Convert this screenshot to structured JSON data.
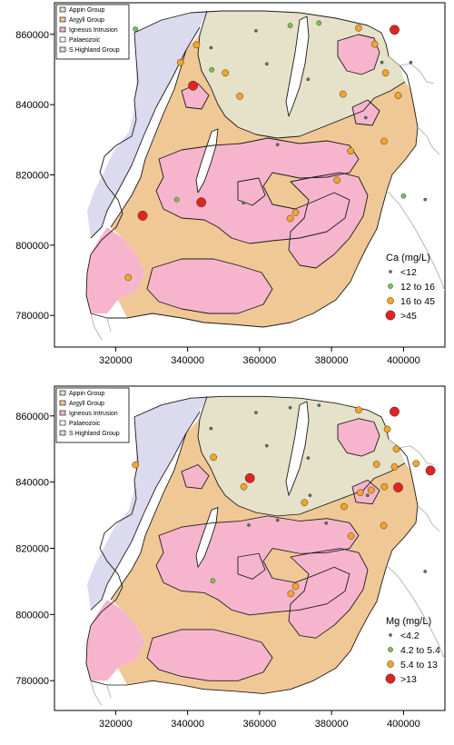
{
  "colors": {
    "appin": "#e6e1c9",
    "argyll": "#f0c896",
    "igneous": "#f7b5cd",
    "palaeozoic": "#ffffff",
    "highland": "#dcdaee",
    "boundary": "#1a1a1a",
    "coast": "#b7b7b7",
    "sea": "#ffffff"
  },
  "maps": [
    {
      "id": "calcium",
      "geology_legend": [
        "Appin Group",
        "Argyll Group",
        "Igneous Intrusion",
        "Palaeozoic",
        "S Highland Group"
      ],
      "point_legend_title": "Ca  (mg/L)",
      "point_classes": [
        {
          "label": "<12",
          "color": "#4a7f5c",
          "size": "tiny"
        },
        {
          "label": "12 to 16",
          "color": "#7ec24c",
          "size": "small"
        },
        {
          "label": "16 to 45",
          "color": "#f5a623",
          "size": "medium"
        },
        {
          "label": ">45",
          "color": "#e0241f",
          "size": "large"
        }
      ],
      "x_ticks": [
        "320000",
        "340000",
        "360000",
        "380000",
        "400000"
      ],
      "y_ticks": [
        "780000",
        "800000",
        "820000",
        "840000",
        "860000"
      ],
      "samples": [
        {
          "e": 325500,
          "n": 861500,
          "c": 2
        },
        {
          "e": 346500,
          "n": 856200,
          "c": 1
        },
        {
          "e": 359000,
          "n": 861000,
          "c": 1
        },
        {
          "e": 368500,
          "n": 862500,
          "c": 2
        },
        {
          "e": 376500,
          "n": 863200,
          "c": 2
        },
        {
          "e": 387500,
          "n": 861800,
          "c": 3
        },
        {
          "e": 397500,
          "n": 861300,
          "c": 4
        },
        {
          "e": 392000,
          "n": 857200,
          "c": 3
        },
        {
          "e": 395000,
          "n": 849000,
          "c": 3
        },
        {
          "e": 394000,
          "n": 852000,
          "c": 1
        },
        {
          "e": 402000,
          "n": 852000,
          "c": 1
        },
        {
          "e": 362000,
          "n": 851600,
          "c": 1
        },
        {
          "e": 373500,
          "n": 847200,
          "c": 1
        },
        {
          "e": 383200,
          "n": 843000,
          "c": 3
        },
        {
          "e": 398500,
          "n": 842600,
          "c": 3
        },
        {
          "e": 389500,
          "n": 836300,
          "c": 1
        },
        {
          "e": 342500,
          "n": 857000,
          "c": 3
        },
        {
          "e": 338000,
          "n": 852000,
          "c": 3
        },
        {
          "e": 341500,
          "n": 845400,
          "c": 4
        },
        {
          "e": 350500,
          "n": 849000,
          "c": 3
        },
        {
          "e": 354500,
          "n": 842400,
          "c": 3
        },
        {
          "e": 346700,
          "n": 849900,
          "c": 2
        },
        {
          "e": 365000,
          "n": 828600,
          "c": 1
        },
        {
          "e": 385300,
          "n": 826800,
          "c": 3
        },
        {
          "e": 394600,
          "n": 829600,
          "c": 3
        },
        {
          "e": 381500,
          "n": 818500,
          "c": 3
        },
        {
          "e": 343800,
          "n": 812200,
          "c": 4
        },
        {
          "e": 355500,
          "n": 812000,
          "c": 1
        },
        {
          "e": 370000,
          "n": 809300,
          "c": 3
        },
        {
          "e": 368500,
          "n": 807600,
          "c": 3
        },
        {
          "e": 327500,
          "n": 808400,
          "c": 4
        },
        {
          "e": 323500,
          "n": 790800,
          "c": 3
        },
        {
          "e": 400000,
          "n": 814000,
          "c": 2
        },
        {
          "e": 406000,
          "n": 813000,
          "c": 1
        },
        {
          "e": 337000,
          "n": 813000,
          "c": 2
        }
      ]
    },
    {
      "id": "magnesium",
      "geology_legend": [
        "Appin Group",
        "Argyll Group",
        "Igneous Intrusion",
        "Palaeozoic",
        "S Highland Group"
      ],
      "point_legend_title": "Mg  (mg/L)",
      "point_classes": [
        {
          "label": "<4.2",
          "color": "#4a7f5c",
          "size": "tiny"
        },
        {
          "label": "4.2 to 5.4",
          "color": "#7ec24c",
          "size": "small"
        },
        {
          "label": "5.4 to 13",
          "color": "#f5a623",
          "size": "medium"
        },
        {
          "label": ">13",
          "color": "#e0241f",
          "size": "large"
        }
      ],
      "x_ticks": [
        "320000",
        "340000",
        "360000",
        "380000",
        "400000"
      ],
      "y_ticks": [
        "780000",
        "800000",
        "820000",
        "840000",
        "860000"
      ],
      "samples": [
        {
          "e": 325500,
          "n": 845200,
          "c": 3
        },
        {
          "e": 346500,
          "n": 856200,
          "c": 1
        },
        {
          "e": 359000,
          "n": 861000,
          "c": 1
        },
        {
          "e": 368500,
          "n": 862500,
          "c": 1
        },
        {
          "e": 376500,
          "n": 863200,
          "c": 1
        },
        {
          "e": 387500,
          "n": 861800,
          "c": 3
        },
        {
          "e": 397500,
          "n": 861300,
          "c": 4
        },
        {
          "e": 395500,
          "n": 856000,
          "c": 3
        },
        {
          "e": 398000,
          "n": 850000,
          "c": 3
        },
        {
          "e": 392500,
          "n": 845400,
          "c": 3
        },
        {
          "e": 397500,
          "n": 844600,
          "c": 3
        },
        {
          "e": 403500,
          "n": 845600,
          "c": 3
        },
        {
          "e": 407500,
          "n": 843500,
          "c": 4
        },
        {
          "e": 398500,
          "n": 838400,
          "c": 4
        },
        {
          "e": 394700,
          "n": 838600,
          "c": 3
        },
        {
          "e": 391000,
          "n": 837600,
          "c": 3
        },
        {
          "e": 388000,
          "n": 836800,
          "c": 3
        },
        {
          "e": 383500,
          "n": 832600,
          "c": 3
        },
        {
          "e": 372500,
          "n": 833800,
          "c": 3
        },
        {
          "e": 378500,
          "n": 827600,
          "c": 1
        },
        {
          "e": 385400,
          "n": 823700,
          "c": 3
        },
        {
          "e": 394500,
          "n": 826900,
          "c": 3
        },
        {
          "e": 357300,
          "n": 841200,
          "c": 4
        },
        {
          "e": 355600,
          "n": 838600,
          "c": 3
        },
        {
          "e": 347200,
          "n": 847500,
          "c": 3
        },
        {
          "e": 362000,
          "n": 851000,
          "c": 1
        },
        {
          "e": 373500,
          "n": 847300,
          "c": 1
        },
        {
          "e": 390000,
          "n": 836000,
          "c": 1
        },
        {
          "e": 365000,
          "n": 828500,
          "c": 1
        },
        {
          "e": 347000,
          "n": 810200,
          "c": 2
        },
        {
          "e": 370000,
          "n": 808500,
          "c": 3
        },
        {
          "e": 368700,
          "n": 806300,
          "c": 3
        },
        {
          "e": 374000,
          "n": 836000,
          "c": 1
        },
        {
          "e": 357000,
          "n": 827000,
          "c": 1
        },
        {
          "e": 406000,
          "n": 813000,
          "c": 1
        }
      ]
    }
  ]
}
